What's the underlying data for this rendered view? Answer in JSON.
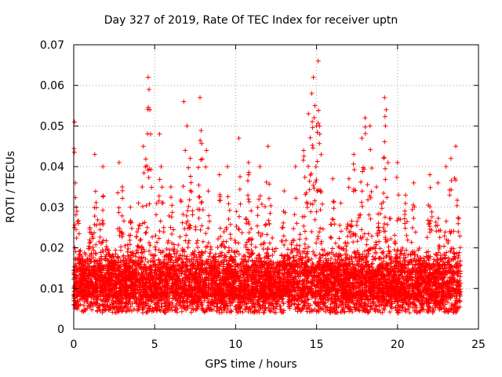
{
  "chart_data": {
    "type": "scatter",
    "title": "Day 327 of 2019, Rate Of TEC Index for receiver uptn",
    "xlabel": "GPS time / hours",
    "ylabel": "ROTI / TECUs",
    "xlim": [
      0,
      25
    ],
    "ylim": [
      0,
      0.07
    ],
    "xticks": [
      "0",
      "5",
      "10",
      "15",
      "20",
      "25"
    ],
    "yticks": [
      "0",
      "0.01",
      "0.02",
      "0.03",
      "0.04",
      "0.05",
      "0.06",
      "0.07"
    ],
    "grid": true,
    "marker": "+",
    "color": "#ff0000",
    "series": [
      {
        "name": "ROTI",
        "x": [
          0.05,
          0.1,
          0.15,
          0.2,
          0.3,
          1.0,
          1.3,
          1.8,
          2.8,
          3.0,
          3.5,
          4.0,
          4.3,
          4.6,
          4.65,
          4.7,
          4.75,
          5.3,
          5.4,
          6.0,
          6.8,
          7.0,
          7.2,
          7.8,
          8.2,
          9.0,
          9.5,
          10.2,
          10.8,
          11.5,
          12.0,
          13.0,
          13.7,
          14.2,
          14.5,
          14.7,
          14.8,
          14.9,
          15.0,
          15.1,
          15.2,
          16.0,
          16.5,
          17.0,
          17.3,
          17.8,
          18.0,
          18.3,
          18.7,
          19.2,
          19.25,
          19.3,
          20.0,
          20.5,
          21.0,
          22.0,
          22.5,
          23.0,
          23.3,
          23.6
        ],
        "y": [
          0.051,
          0.036,
          0.03,
          0.029,
          0.026,
          0.025,
          0.043,
          0.04,
          0.041,
          0.035,
          0.03,
          0.031,
          0.045,
          0.062,
          0.059,
          0.054,
          0.048,
          0.048,
          0.04,
          0.035,
          0.056,
          0.05,
          0.042,
          0.057,
          0.044,
          0.038,
          0.04,
          0.047,
          0.041,
          0.04,
          0.045,
          0.034,
          0.04,
          0.044,
          0.053,
          0.058,
          0.062,
          0.055,
          0.05,
          0.066,
          0.048,
          0.037,
          0.031,
          0.037,
          0.043,
          0.047,
          0.052,
          0.05,
          0.035,
          0.057,
          0.05,
          0.054,
          0.041,
          0.033,
          0.036,
          0.038,
          0.036,
          0.04,
          0.042,
          0.045
        ]
      }
    ]
  }
}
